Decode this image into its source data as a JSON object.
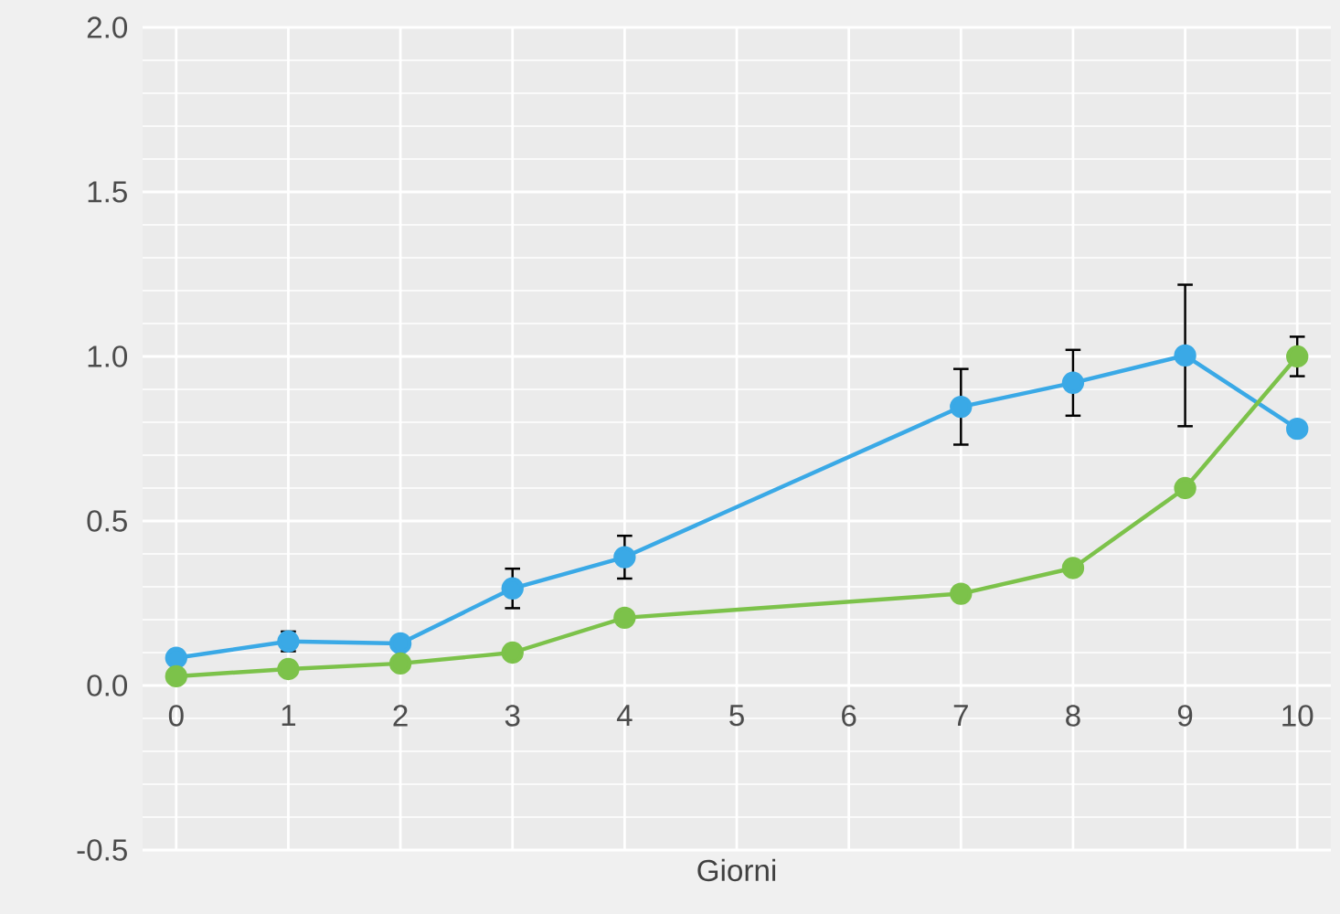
{
  "chart_data": {
    "type": "line",
    "xlabel": "Giorni",
    "categories": [
      "0",
      "1",
      "2",
      "3",
      "4",
      "5",
      "6",
      "7",
      "8",
      "9",
      "10"
    ],
    "series": [
      {
        "color": "#3aa9e6",
        "values": [
          0.084,
          0.134,
          0.128,
          0.295,
          0.39,
          null,
          null,
          0.847,
          0.92,
          1.003,
          0.78
        ],
        "errors": [
          null,
          0.03,
          null,
          0.06,
          0.065,
          null,
          null,
          0.115,
          0.1,
          0.215,
          null
        ]
      },
      {
        "color": "#7cc24a",
        "values": [
          0.028,
          0.05,
          0.067,
          0.1,
          0.206,
          null,
          null,
          0.279,
          0.357,
          0.6,
          1.0
        ],
        "errors": [
          null,
          null,
          null,
          null,
          null,
          null,
          null,
          null,
          null,
          null,
          0.06
        ]
      }
    ],
    "ylim": [
      -0.5,
      2.0
    ],
    "yticks": [
      -0.5,
      {
        "value": 0,
        "label": "0.0"
      },
      0.5,
      {
        "value": 1,
        "label": "1.0"
      },
      1.5,
      {
        "value": 2,
        "label": "2.0"
      }
    ],
    "grid": true,
    "marker": "circle",
    "line_style": "solid"
  }
}
